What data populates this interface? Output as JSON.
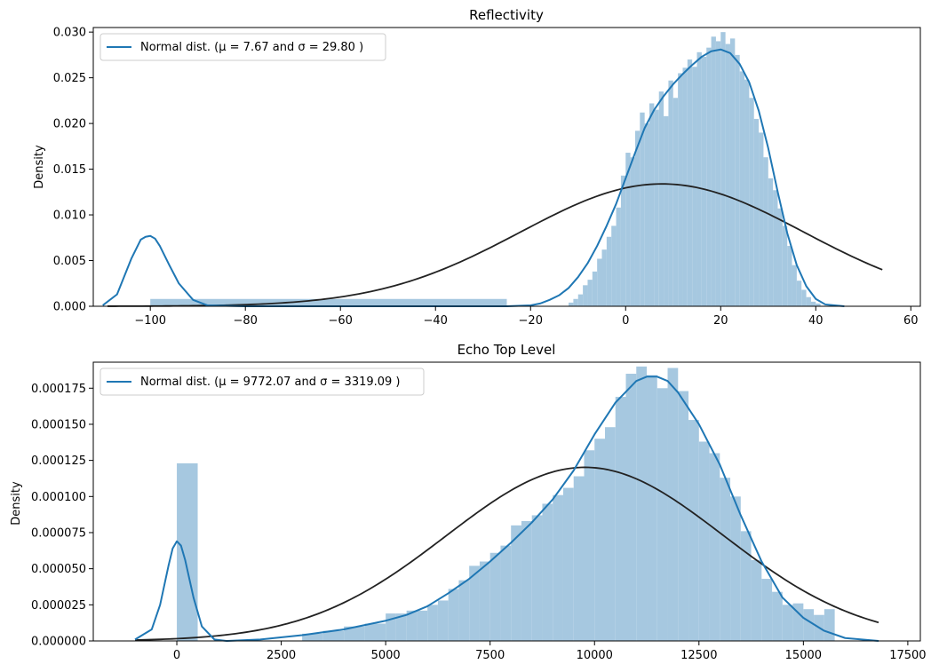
{
  "chart_data": [
    {
      "type": "histogram",
      "title": "Reflectivity",
      "xlabel": "",
      "ylabel": "Density",
      "xlim": [
        -112,
        62
      ],
      "ylim": [
        0,
        0.0305
      ],
      "xticks": [
        -100,
        -80,
        -60,
        -40,
        -20,
        0,
        20,
        40,
        60
      ],
      "yticks": [
        0.0,
        0.005,
        0.01,
        0.015,
        0.02,
        0.025,
        0.03
      ],
      "xtick_labels": [
        "−100",
        "−80",
        "−60",
        "−40",
        "−20",
        "0",
        "20",
        "40",
        "60"
      ],
      "ytick_labels": [
        "0.000",
        "0.005",
        "0.010",
        "0.015",
        "0.020",
        "0.025",
        "0.030"
      ],
      "legend": {
        "label": "Normal dist. ($\\mu=$ 7.67 and $\\sigma=$ 29.80 )",
        "display": "Normal dist. (μ = 7.67 and σ = 29.80 )",
        "placement": "top-left"
      },
      "bars": [
        {
          "x0": -100,
          "x1": -25,
          "h": 0.0008
        },
        {
          "x0": -12,
          "x1": -11,
          "h": 0.0004
        },
        {
          "x0": -11,
          "x1": -10,
          "h": 0.0008
        },
        {
          "x0": -10,
          "x1": -9,
          "h": 0.0013
        },
        {
          "x0": -9,
          "x1": -8,
          "h": 0.0023
        },
        {
          "x0": -8,
          "x1": -7,
          "h": 0.0029
        },
        {
          "x0": -7,
          "x1": -6,
          "h": 0.0038
        },
        {
          "x0": -6,
          "x1": -5,
          "h": 0.0052
        },
        {
          "x0": -5,
          "x1": -4,
          "h": 0.0062
        },
        {
          "x0": -4,
          "x1": -3,
          "h": 0.0076
        },
        {
          "x0": -3,
          "x1": -2,
          "h": 0.0088
        },
        {
          "x0": -2,
          "x1": -1,
          "h": 0.0108
        },
        {
          "x0": -1,
          "x1": 0,
          "h": 0.0143
        },
        {
          "x0": 0,
          "x1": 1,
          "h": 0.0168
        },
        {
          "x0": 1,
          "x1": 2,
          "h": 0.0163
        },
        {
          "x0": 2,
          "x1": 3,
          "h": 0.0192
        },
        {
          "x0": 3,
          "x1": 4,
          "h": 0.0212
        },
        {
          "x0": 4,
          "x1": 5,
          "h": 0.02
        },
        {
          "x0": 5,
          "x1": 6,
          "h": 0.0222
        },
        {
          "x0": 6,
          "x1": 7,
          "h": 0.0215
        },
        {
          "x0": 7,
          "x1": 8,
          "h": 0.0235
        },
        {
          "x0": 8,
          "x1": 9,
          "h": 0.0208
        },
        {
          "x0": 9,
          "x1": 10,
          "h": 0.0247
        },
        {
          "x0": 10,
          "x1": 11,
          "h": 0.0228
        },
        {
          "x0": 11,
          "x1": 12,
          "h": 0.0255
        },
        {
          "x0": 12,
          "x1": 13,
          "h": 0.0261
        },
        {
          "x0": 13,
          "x1": 14,
          "h": 0.027
        },
        {
          "x0": 14,
          "x1": 15,
          "h": 0.0262
        },
        {
          "x0": 15,
          "x1": 16,
          "h": 0.0278
        },
        {
          "x0": 16,
          "x1": 17,
          "h": 0.0273
        },
        {
          "x0": 17,
          "x1": 18,
          "h": 0.0283
        },
        {
          "x0": 18,
          "x1": 19,
          "h": 0.0295
        },
        {
          "x0": 19,
          "x1": 20,
          "h": 0.029
        },
        {
          "x0": 20,
          "x1": 21,
          "h": 0.03
        },
        {
          "x0": 21,
          "x1": 22,
          "h": 0.0287
        },
        {
          "x0": 22,
          "x1": 23,
          "h": 0.0293
        },
        {
          "x0": 23,
          "x1": 24,
          "h": 0.0275
        },
        {
          "x0": 24,
          "x1": 25,
          "h": 0.0257
        },
        {
          "x0": 25,
          "x1": 26,
          "h": 0.0248
        },
        {
          "x0": 26,
          "x1": 27,
          "h": 0.0228
        },
        {
          "x0": 27,
          "x1": 28,
          "h": 0.0205
        },
        {
          "x0": 28,
          "x1": 29,
          "h": 0.019
        },
        {
          "x0": 29,
          "x1": 30,
          "h": 0.0163
        },
        {
          "x0": 30,
          "x1": 31,
          "h": 0.014
        },
        {
          "x0": 31,
          "x1": 32,
          "h": 0.0127
        },
        {
          "x0": 32,
          "x1": 33,
          "h": 0.0107
        },
        {
          "x0": 33,
          "x1": 34,
          "h": 0.0088
        },
        {
          "x0": 34,
          "x1": 35,
          "h": 0.0066
        },
        {
          "x0": 35,
          "x1": 36,
          "h": 0.0045
        },
        {
          "x0": 36,
          "x1": 37,
          "h": 0.0028
        },
        {
          "x0": 37,
          "x1": 38,
          "h": 0.0018
        },
        {
          "x0": 38,
          "x1": 39,
          "h": 0.001
        },
        {
          "x0": 39,
          "x1": 40,
          "h": 0.0005
        },
        {
          "x0": 40,
          "x1": 41,
          "h": 0.0003
        }
      ],
      "kde": {
        "x": [
          -110,
          -107,
          -104,
          -102,
          -101,
          -100,
          -99,
          -98,
          -96,
          -94,
          -91,
          -88,
          -80,
          -60,
          -40,
          -25,
          -20,
          -18,
          -16,
          -14,
          -12,
          -10,
          -8,
          -6,
          -4,
          -2,
          0,
          2,
          4,
          6,
          8,
          10,
          12,
          14,
          16,
          18,
          20,
          22,
          24,
          26,
          28,
          30,
          32,
          34,
          36,
          38,
          40,
          42,
          44,
          46
        ],
        "y": [
          0.0001,
          0.0013,
          0.0052,
          0.0073,
          0.0076,
          0.0077,
          0.0074,
          0.0066,
          0.0045,
          0.0025,
          0.0007,
          0.0001,
          0.0,
          0.0,
          0.0,
          0.0,
          0.0001,
          0.0003,
          0.0007,
          0.0012,
          0.002,
          0.0032,
          0.0047,
          0.0066,
          0.0088,
          0.0112,
          0.014,
          0.0168,
          0.0195,
          0.0215,
          0.023,
          0.0243,
          0.0254,
          0.0264,
          0.0273,
          0.0279,
          0.0281,
          0.0277,
          0.0265,
          0.0245,
          0.0214,
          0.0173,
          0.0125,
          0.008,
          0.0045,
          0.0022,
          0.0008,
          0.0002,
          0.0001,
          0.0
        ]
      },
      "normal_fit": {
        "mu": 7.67,
        "sigma": 29.8,
        "x_range": [
          -109,
          54
        ]
      },
      "colors": {
        "bars": "#a6c8e0",
        "kde": "#1f77b4",
        "normal": "#222222"
      }
    },
    {
      "type": "histogram",
      "title": "Echo Top Level",
      "xlabel": "",
      "ylabel": "Density",
      "xlim": [
        -2000,
        17800
      ],
      "ylim": [
        0,
        0.000193
      ],
      "xticks": [
        0,
        2500,
        5000,
        7500,
        10000,
        12500,
        15000,
        17500
      ],
      "yticks": [
        0.0,
        2.5e-05,
        5e-05,
        7.5e-05,
        0.0001,
        0.000125,
        0.00015,
        0.000175
      ],
      "xtick_labels": [
        "0",
        "2500",
        "5000",
        "7500",
        "10000",
        "12500",
        "15000",
        "17500"
      ],
      "ytick_labels": [
        "0.000000",
        "0.000025",
        "0.000050",
        "0.000075",
        "0.000100",
        "0.000125",
        "0.000150",
        "0.000175"
      ],
      "legend": {
        "label": "Normal dist. ($\\mu=$ 9772.07 and $\\sigma=$ 3319.09 )",
        "display": "Normal dist. (μ = 9772.07 and σ = 3319.09 )",
        "placement": "top-left"
      },
      "bars": [
        {
          "x0": 0,
          "x1": 500,
          "h": 0.000123
        },
        {
          "x0": 3000,
          "x1": 3500,
          "h": 5e-06
        },
        {
          "x0": 3500,
          "x1": 4000,
          "h": 7e-06
        },
        {
          "x0": 4000,
          "x1": 4500,
          "h": 1e-05
        },
        {
          "x0": 4500,
          "x1": 5000,
          "h": 1.2e-05
        },
        {
          "x0": 5000,
          "x1": 5250,
          "h": 1.9e-05
        },
        {
          "x0": 5250,
          "x1": 5500,
          "h": 1.9e-05
        },
        {
          "x0": 5500,
          "x1": 5750,
          "h": 2.1e-05
        },
        {
          "x0": 5750,
          "x1": 6000,
          "h": 2.1e-05
        },
        {
          "x0": 6000,
          "x1": 6250,
          "h": 2.5e-05
        },
        {
          "x0": 6250,
          "x1": 6500,
          "h": 2.8e-05
        },
        {
          "x0": 6500,
          "x1": 6750,
          "h": 3.6e-05
        },
        {
          "x0": 6750,
          "x1": 7000,
          "h": 4.2e-05
        },
        {
          "x0": 7000,
          "x1": 7250,
          "h": 5.2e-05
        },
        {
          "x0": 7250,
          "x1": 7500,
          "h": 5.5e-05
        },
        {
          "x0": 7500,
          "x1": 7750,
          "h": 6.1e-05
        },
        {
          "x0": 7750,
          "x1": 8000,
          "h": 6.6e-05
        },
        {
          "x0": 8000,
          "x1": 8250,
          "h": 8e-05
        },
        {
          "x0": 8250,
          "x1": 8500,
          "h": 8.3e-05
        },
        {
          "x0": 8500,
          "x1": 8750,
          "h": 8.7e-05
        },
        {
          "x0": 8750,
          "x1": 9000,
          "h": 9.5e-05
        },
        {
          "x0": 9000,
          "x1": 9250,
          "h": 0.000101
        },
        {
          "x0": 9250,
          "x1": 9500,
          "h": 0.000106
        },
        {
          "x0": 9500,
          "x1": 9750,
          "h": 0.000114
        },
        {
          "x0": 9750,
          "x1": 10000,
          "h": 0.000132
        },
        {
          "x0": 10000,
          "x1": 10250,
          "h": 0.00014
        },
        {
          "x0": 10250,
          "x1": 10500,
          "h": 0.000148
        },
        {
          "x0": 10500,
          "x1": 10750,
          "h": 0.000169
        },
        {
          "x0": 10750,
          "x1": 11000,
          "h": 0.000185
        },
        {
          "x0": 11000,
          "x1": 11250,
          "h": 0.00019
        },
        {
          "x0": 11250,
          "x1": 11500,
          "h": 0.000184
        },
        {
          "x0": 11500,
          "x1": 11750,
          "h": 0.000175
        },
        {
          "x0": 11750,
          "x1": 12000,
          "h": 0.000189
        },
        {
          "x0": 12000,
          "x1": 12250,
          "h": 0.000173
        },
        {
          "x0": 12250,
          "x1": 12500,
          "h": 0.000153
        },
        {
          "x0": 12500,
          "x1": 12750,
          "h": 0.000138
        },
        {
          "x0": 12750,
          "x1": 13000,
          "h": 0.00013
        },
        {
          "x0": 13000,
          "x1": 13250,
          "h": 0.000113
        },
        {
          "x0": 13250,
          "x1": 13500,
          "h": 0.0001
        },
        {
          "x0": 13500,
          "x1": 13750,
          "h": 7.6e-05
        },
        {
          "x0": 13750,
          "x1": 14000,
          "h": 5.6e-05
        },
        {
          "x0": 14000,
          "x1": 14250,
          "h": 4.3e-05
        },
        {
          "x0": 14250,
          "x1": 14500,
          "h": 3.4e-05
        },
        {
          "x0": 14500,
          "x1": 14750,
          "h": 2.5e-05
        },
        {
          "x0": 14750,
          "x1": 15000,
          "h": 2.6e-05
        },
        {
          "x0": 15000,
          "x1": 15250,
          "h": 2.2e-05
        },
        {
          "x0": 15250,
          "x1": 15500,
          "h": 1.8e-05
        },
        {
          "x0": 15500,
          "x1": 15750,
          "h": 2.2e-05
        }
      ],
      "kde": {
        "x": [
          -1000,
          -600,
          -400,
          -200,
          -100,
          0,
          100,
          200,
          400,
          600,
          900,
          1200,
          2000,
          3000,
          4000,
          5000,
          5500,
          6000,
          6500,
          7000,
          7500,
          8000,
          8500,
          9000,
          9500,
          10000,
          10500,
          11000,
          11250,
          11500,
          11750,
          12000,
          12500,
          13000,
          13500,
          14000,
          14500,
          15000,
          15500,
          16000,
          16800
        ],
        "y": [
          1e-06,
          8e-06,
          2.5e-05,
          5.2e-05,
          6.4e-05,
          6.9e-05,
          6.6e-05,
          5.6e-05,
          3e-05,
          1e-05,
          1e-06,
          0.0,
          1e-06,
          4e-06,
          8e-06,
          1.4e-05,
          1.8e-05,
          2.4e-05,
          3.3e-05,
          4.3e-05,
          5.5e-05,
          6.8e-05,
          8.2e-05,
          9.8e-05,
          0.000118,
          0.000143,
          0.000165,
          0.00018,
          0.000183,
          0.000183,
          0.00018,
          0.000172,
          0.00015,
          0.000122,
          8.7e-05,
          5.5e-05,
          3e-05,
          1.6e-05,
          7e-06,
          2e-06,
          0.0
        ]
      },
      "normal_fit": {
        "mu": 9772.07,
        "sigma": 3319.09,
        "x_range": [
          -1000,
          16800
        ]
      },
      "colors": {
        "bars": "#a6c8e0",
        "kde": "#1f77b4",
        "normal": "#222222"
      }
    }
  ]
}
